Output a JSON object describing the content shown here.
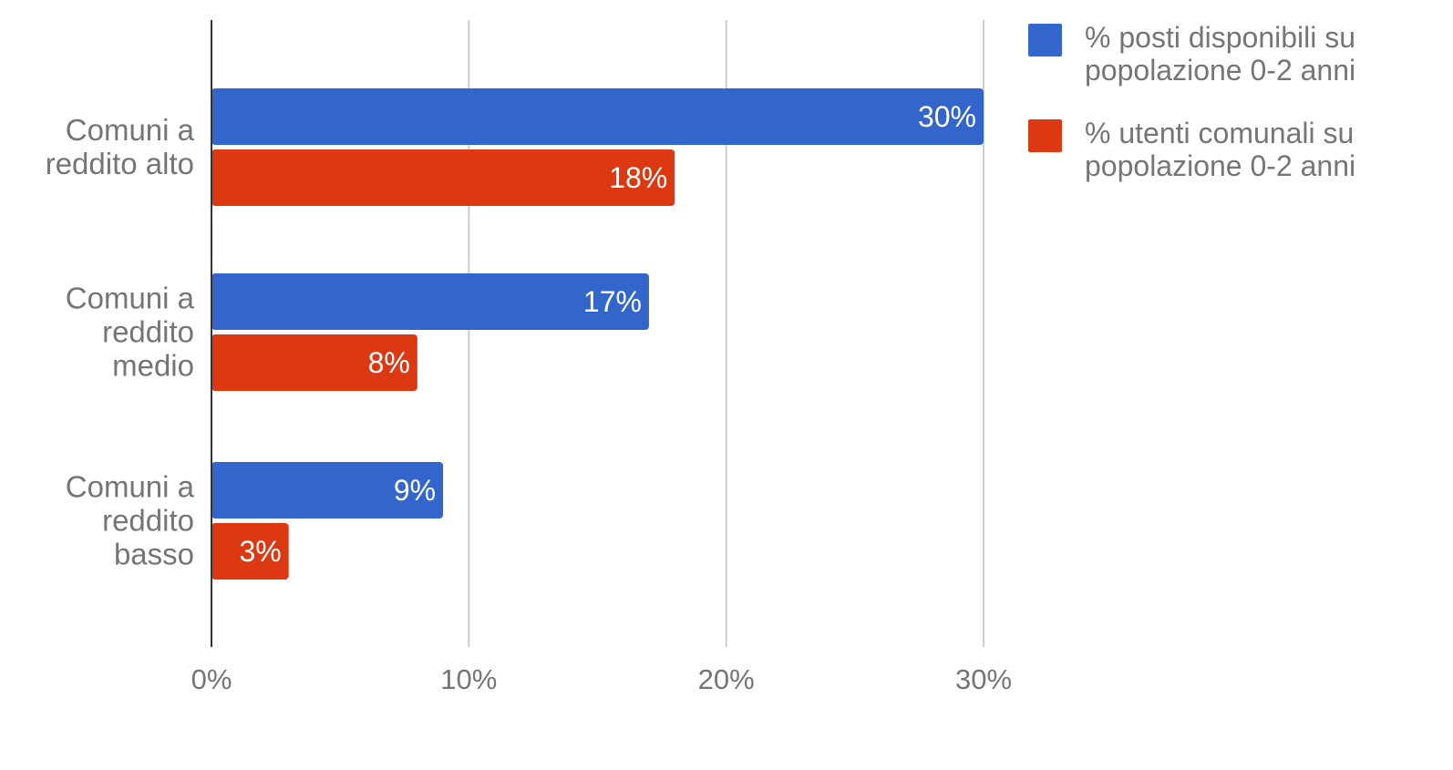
{
  "chart_data": {
    "type": "bar",
    "orientation": "horizontal",
    "categories": [
      [
        "Comuni a",
        "reddito alto"
      ],
      [
        "Comuni a",
        "reddito",
        "medio"
      ],
      [
        "Comuni a",
        "reddito",
        "basso"
      ]
    ],
    "series": [
      {
        "name": [
          "% posti disponibili su",
          "popolazione 0-2 anni"
        ],
        "color": "#3366cc",
        "values": [
          30,
          17,
          9
        ],
        "labels": [
          "30%",
          "17%",
          "9%"
        ]
      },
      {
        "name": [
          "% utenti comunali su",
          "popolazione 0-2 anni"
        ],
        "color": "#dc3912",
        "values": [
          18,
          8,
          3
        ],
        "labels": [
          "18%",
          "8%",
          "3%"
        ]
      }
    ],
    "xlim": [
      0,
      30
    ],
    "xticks": [
      0,
      10,
      20,
      30
    ],
    "xtick_labels": [
      "0%",
      "10%",
      "20%",
      "30%"
    ],
    "grid": true,
    "legend_position": "right",
    "title": "",
    "xlabel": "",
    "ylabel": ""
  }
}
